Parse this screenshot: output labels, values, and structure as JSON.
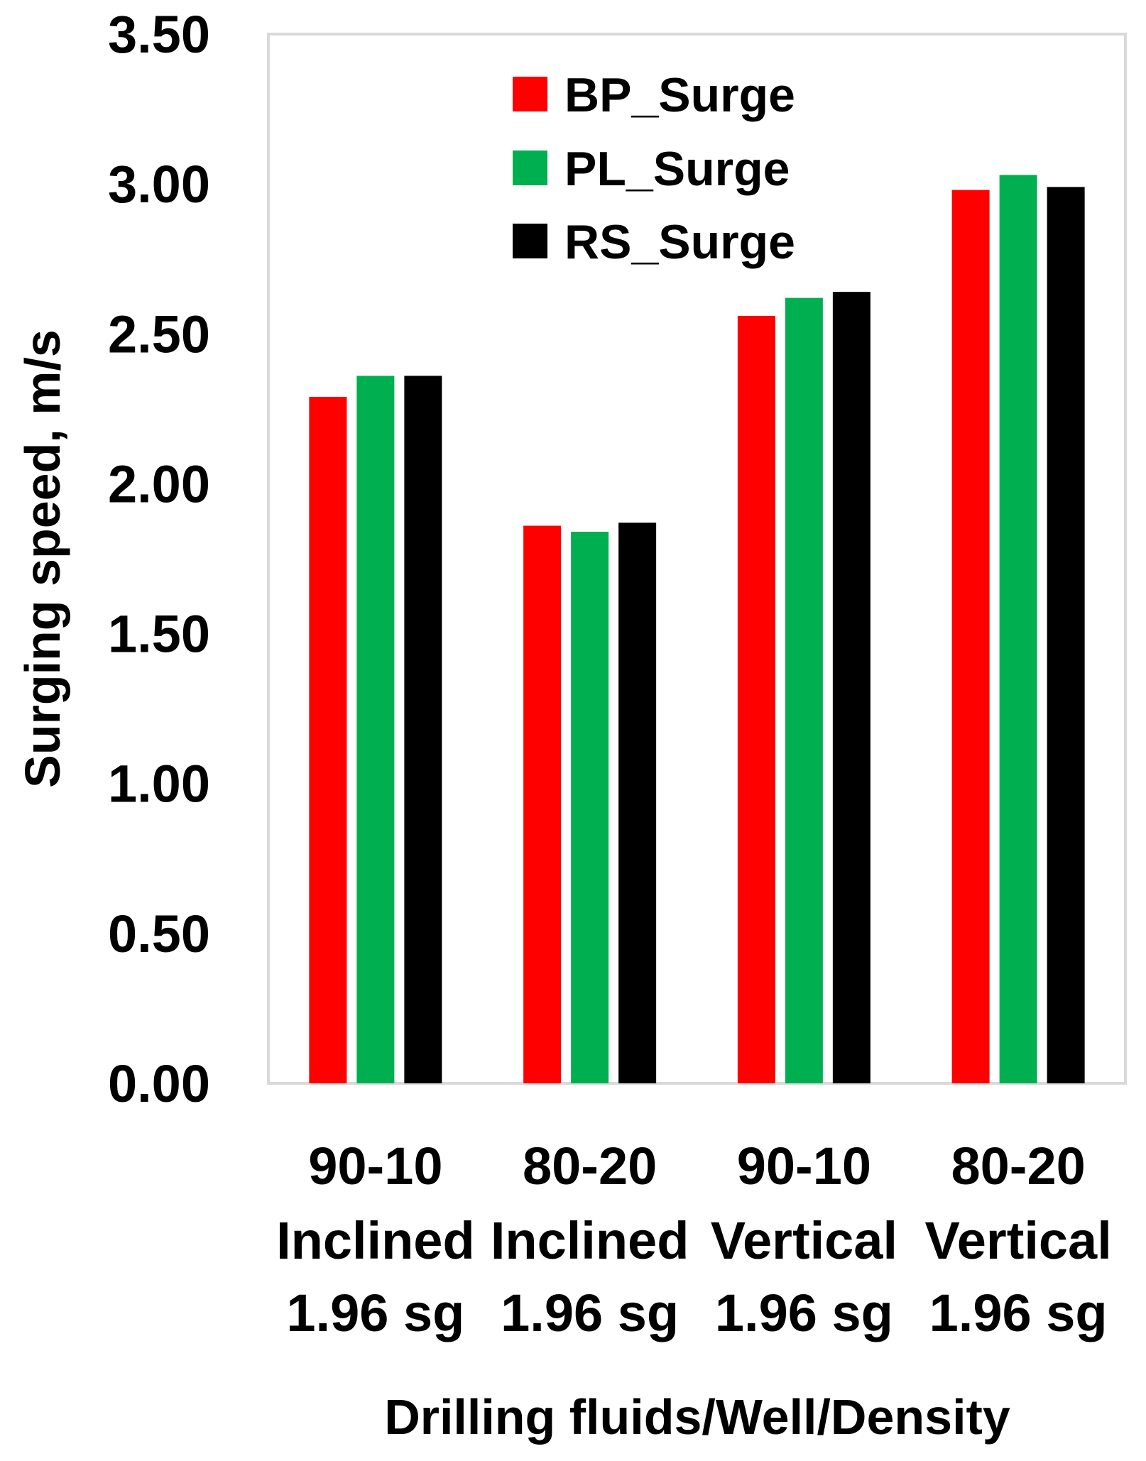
{
  "chart_data": {
    "type": "bar",
    "title": "",
    "xlabel": "Drilling fluids/Well/Density",
    "ylabel": "Surging speed, m/s",
    "ylim": [
      0,
      3.5
    ],
    "yticks": [
      "0.00",
      "0.50",
      "1.00",
      "1.50",
      "2.00",
      "2.50",
      "3.00",
      "3.50"
    ],
    "ytick_values": [
      0,
      0.5,
      1.0,
      1.5,
      2.0,
      2.5,
      3.0,
      3.5
    ],
    "grid": false,
    "legend_position": "top-center",
    "categories": [
      [
        "90-10",
        "Inclined",
        "1.96 sg"
      ],
      [
        "80-20",
        "Inclined",
        "1.96 sg"
      ],
      [
        "90-10",
        "Vertical",
        "1.96 sg"
      ],
      [
        "80-20",
        "Vertical",
        "1.96 sg"
      ]
    ],
    "series": [
      {
        "name": "BP_Surge",
        "color": "#ff0000",
        "values": [
          2.29,
          1.86,
          2.56,
          2.98
        ]
      },
      {
        "name": "PL_Surge",
        "color": "#00b050",
        "values": [
          2.36,
          1.84,
          2.62,
          3.03
        ]
      },
      {
        "name": "RS_Surge",
        "color": "#000000",
        "values": [
          2.36,
          1.87,
          2.64,
          2.99
        ]
      }
    ]
  }
}
